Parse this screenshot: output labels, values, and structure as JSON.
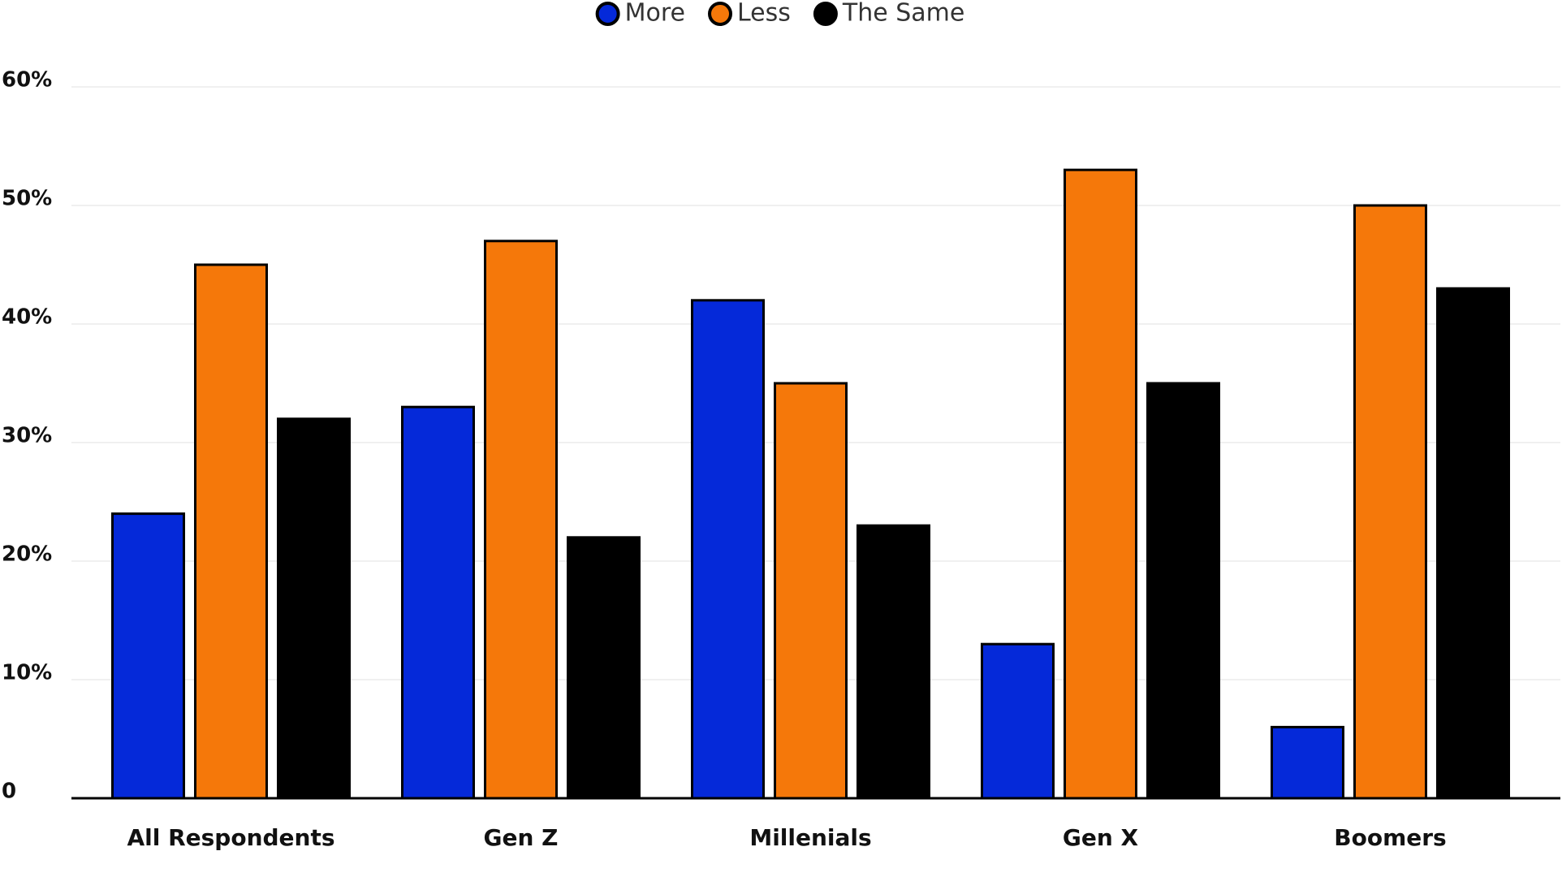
{
  "chart_data": {
    "type": "bar",
    "categories": [
      "All Respondents",
      "Gen Z",
      "Millenials",
      "Gen X",
      "Boomers"
    ],
    "series": [
      {
        "name": "More",
        "color": "#0529d9",
        "values": [
          24,
          33,
          42,
          13,
          6
        ]
      },
      {
        "name": "Less",
        "color": "#f5780a",
        "values": [
          45,
          47,
          35,
          53,
          50
        ]
      },
      {
        "name": "The Same",
        "color": "#000000",
        "values": [
          32,
          22,
          23,
          35,
          43
        ]
      }
    ],
    "ylim": [
      0,
      60
    ],
    "yticks": [
      0,
      {
        "value": 10,
        "label": "10%"
      },
      {
        "value": 20,
        "label": "20%"
      },
      {
        "value": 30,
        "label": "30%"
      },
      {
        "value": 40,
        "label": "40%"
      },
      {
        "value": 50,
        "label": "50%"
      },
      {
        "value": 60,
        "label": "60%"
      }
    ],
    "grid": true,
    "legend": "top"
  }
}
